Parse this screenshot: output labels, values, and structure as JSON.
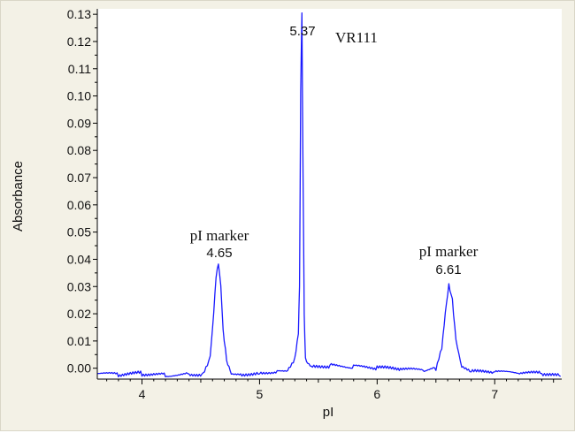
{
  "chart_data": {
    "type": "line",
    "xlabel": "pI",
    "ylabel": "Absorbance",
    "xlim": [
      3.62,
      7.57
    ],
    "ylim": [
      -0.004,
      0.132
    ],
    "x_ticks": [
      4,
      5,
      6,
      7
    ],
    "x_tick_labels": [
      "4",
      "5",
      "6",
      "7"
    ],
    "y_ticks": [
      0,
      0.01,
      0.02,
      0.03,
      0.04,
      0.05,
      0.06,
      0.07,
      0.08,
      0.09,
      0.1,
      0.11,
      0.12,
      0.13
    ],
    "y_tick_labels": [
      "0.00",
      "0.01",
      "0.02",
      "0.03",
      "0.04",
      "0.05",
      "0.06",
      "0.07",
      "0.08",
      "0.09",
      "0.10",
      "0.11",
      "0.12",
      "0.13"
    ],
    "grid": false,
    "line_color": "#1a1aff",
    "series": [
      {
        "x": [
          3.62,
          3.8,
          4.0,
          4.2,
          4.4,
          4.52,
          4.58,
          4.61,
          4.63,
          4.65,
          4.67,
          4.69,
          4.72,
          4.76,
          4.85,
          5.0,
          5.15,
          5.25,
          5.3,
          5.33,
          5.34,
          5.35,
          5.36,
          5.37,
          5.38,
          5.39,
          5.41,
          5.45,
          5.6,
          5.8,
          6.0,
          6.2,
          6.4,
          6.5,
          6.55,
          6.58,
          6.61,
          6.64,
          6.67,
          6.72,
          6.8,
          7.0,
          7.2,
          7.4,
          7.56
        ],
        "y": [
          -0.002,
          -0.0025,
          -0.002,
          -0.0025,
          -0.002,
          -0.002,
          0.004,
          0.02,
          0.033,
          0.038,
          0.03,
          0.014,
          0.003,
          -0.0015,
          -0.002,
          -0.0015,
          -0.001,
          -0.0005,
          0.003,
          0.012,
          0.03,
          0.102,
          0.131,
          0.07,
          0.02,
          0.004,
          0.002,
          0.0005,
          0.001,
          0.0005,
          0.0,
          -0.0005,
          -0.001,
          0.0,
          0.008,
          0.021,
          0.031,
          0.025,
          0.01,
          0.0,
          -0.0015,
          -0.0015,
          -0.002,
          -0.002,
          -0.003
        ]
      }
    ],
    "annotations": [
      {
        "text": "pI marker",
        "value": "4.65",
        "x": 4.65
      },
      {
        "text": "VR111",
        "value": "5.37",
        "x": 5.37
      },
      {
        "text": "pI marker",
        "value": "6.61",
        "x": 6.61
      }
    ]
  }
}
